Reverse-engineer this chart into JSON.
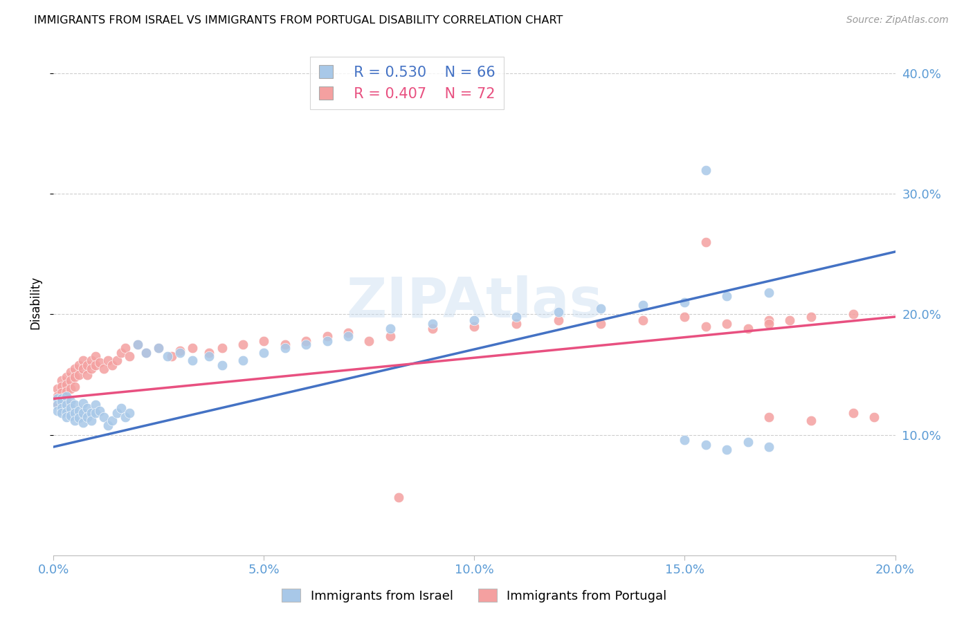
{
  "title": "IMMIGRANTS FROM ISRAEL VS IMMIGRANTS FROM PORTUGAL DISABILITY CORRELATION CHART",
  "source": "Source: ZipAtlas.com",
  "ylabel_label": "Disability",
  "xlim": [
    0.0,
    0.2
  ],
  "ylim": [
    0.0,
    0.42
  ],
  "xticks": [
    0.0,
    0.05,
    0.1,
    0.15,
    0.2
  ],
  "yticks": [
    0.1,
    0.2,
    0.3,
    0.4
  ],
  "ytick_labels": [
    "10.0%",
    "20.0%",
    "30.0%",
    "40.0%"
  ],
  "xtick_labels": [
    "0.0%",
    "5.0%",
    "10.0%",
    "15.0%",
    "20.0%"
  ],
  "israel_color": "#A8C8E8",
  "portugal_color": "#F4A0A0",
  "israel_line_color": "#4472C4",
  "portugal_line_color": "#E85080",
  "axis_color": "#5B9BD5",
  "grid_color": "#C8C8C8",
  "legend_israel_r": "R = 0.530",
  "legend_israel_n": "N = 66",
  "legend_portugal_r": "R = 0.407",
  "legend_portugal_n": "N = 72",
  "israel_trend_x0": 0.0,
  "israel_trend_y0": 0.09,
  "israel_trend_x1": 0.2,
  "israel_trend_y1": 0.252,
  "portugal_trend_x0": 0.0,
  "portugal_trend_y0": 0.13,
  "portugal_trend_x1": 0.2,
  "portugal_trend_y1": 0.198,
  "israel_x": [
    0.001,
    0.001,
    0.001,
    0.002,
    0.002,
    0.002,
    0.002,
    0.003,
    0.003,
    0.003,
    0.003,
    0.004,
    0.004,
    0.004,
    0.005,
    0.005,
    0.005,
    0.006,
    0.006,
    0.007,
    0.007,
    0.007,
    0.008,
    0.008,
    0.009,
    0.009,
    0.01,
    0.01,
    0.011,
    0.012,
    0.013,
    0.014,
    0.015,
    0.016,
    0.017,
    0.018,
    0.02,
    0.022,
    0.025,
    0.027,
    0.03,
    0.033,
    0.037,
    0.04,
    0.045,
    0.05,
    0.055,
    0.06,
    0.065,
    0.07,
    0.08,
    0.09,
    0.1,
    0.11,
    0.12,
    0.13,
    0.14,
    0.15,
    0.16,
    0.17,
    0.15,
    0.155,
    0.16,
    0.165,
    0.17,
    0.155
  ],
  "israel_y": [
    0.13,
    0.125,
    0.12,
    0.13,
    0.128,
    0.122,
    0.118,
    0.132,
    0.125,
    0.119,
    0.115,
    0.128,
    0.122,
    0.116,
    0.125,
    0.118,
    0.112,
    0.12,
    0.114,
    0.126,
    0.118,
    0.11,
    0.122,
    0.115,
    0.118,
    0.112,
    0.125,
    0.118,
    0.12,
    0.115,
    0.108,
    0.112,
    0.118,
    0.122,
    0.115,
    0.118,
    0.175,
    0.168,
    0.172,
    0.165,
    0.168,
    0.162,
    0.165,
    0.158,
    0.162,
    0.168,
    0.172,
    0.175,
    0.178,
    0.182,
    0.188,
    0.192,
    0.195,
    0.198,
    0.202,
    0.205,
    0.208,
    0.21,
    0.215,
    0.218,
    0.096,
    0.092,
    0.088,
    0.094,
    0.09,
    0.32
  ],
  "portugal_x": [
    0.001,
    0.001,
    0.001,
    0.002,
    0.002,
    0.002,
    0.002,
    0.003,
    0.003,
    0.003,
    0.003,
    0.004,
    0.004,
    0.004,
    0.005,
    0.005,
    0.005,
    0.006,
    0.006,
    0.007,
    0.007,
    0.008,
    0.008,
    0.009,
    0.009,
    0.01,
    0.01,
    0.011,
    0.012,
    0.013,
    0.014,
    0.015,
    0.016,
    0.017,
    0.018,
    0.02,
    0.022,
    0.025,
    0.028,
    0.03,
    0.033,
    0.037,
    0.04,
    0.045,
    0.05,
    0.055,
    0.06,
    0.065,
    0.07,
    0.075,
    0.08,
    0.09,
    0.1,
    0.11,
    0.12,
    0.13,
    0.14,
    0.15,
    0.16,
    0.17,
    0.18,
    0.19,
    0.17,
    0.18,
    0.19,
    0.195,
    0.155,
    0.165,
    0.17,
    0.175,
    0.082,
    0.155
  ],
  "portugal_y": [
    0.138,
    0.132,
    0.126,
    0.145,
    0.14,
    0.135,
    0.128,
    0.148,
    0.142,
    0.136,
    0.128,
    0.152,
    0.145,
    0.138,
    0.155,
    0.148,
    0.14,
    0.158,
    0.15,
    0.162,
    0.155,
    0.158,
    0.15,
    0.162,
    0.155,
    0.165,
    0.158,
    0.16,
    0.155,
    0.162,
    0.158,
    0.162,
    0.168,
    0.172,
    0.165,
    0.175,
    0.168,
    0.172,
    0.165,
    0.17,
    0.172,
    0.168,
    0.172,
    0.175,
    0.178,
    0.175,
    0.178,
    0.182,
    0.185,
    0.178,
    0.182,
    0.188,
    0.19,
    0.192,
    0.195,
    0.192,
    0.195,
    0.198,
    0.192,
    0.195,
    0.198,
    0.2,
    0.115,
    0.112,
    0.118,
    0.115,
    0.19,
    0.188,
    0.192,
    0.195,
    0.048,
    0.26
  ]
}
